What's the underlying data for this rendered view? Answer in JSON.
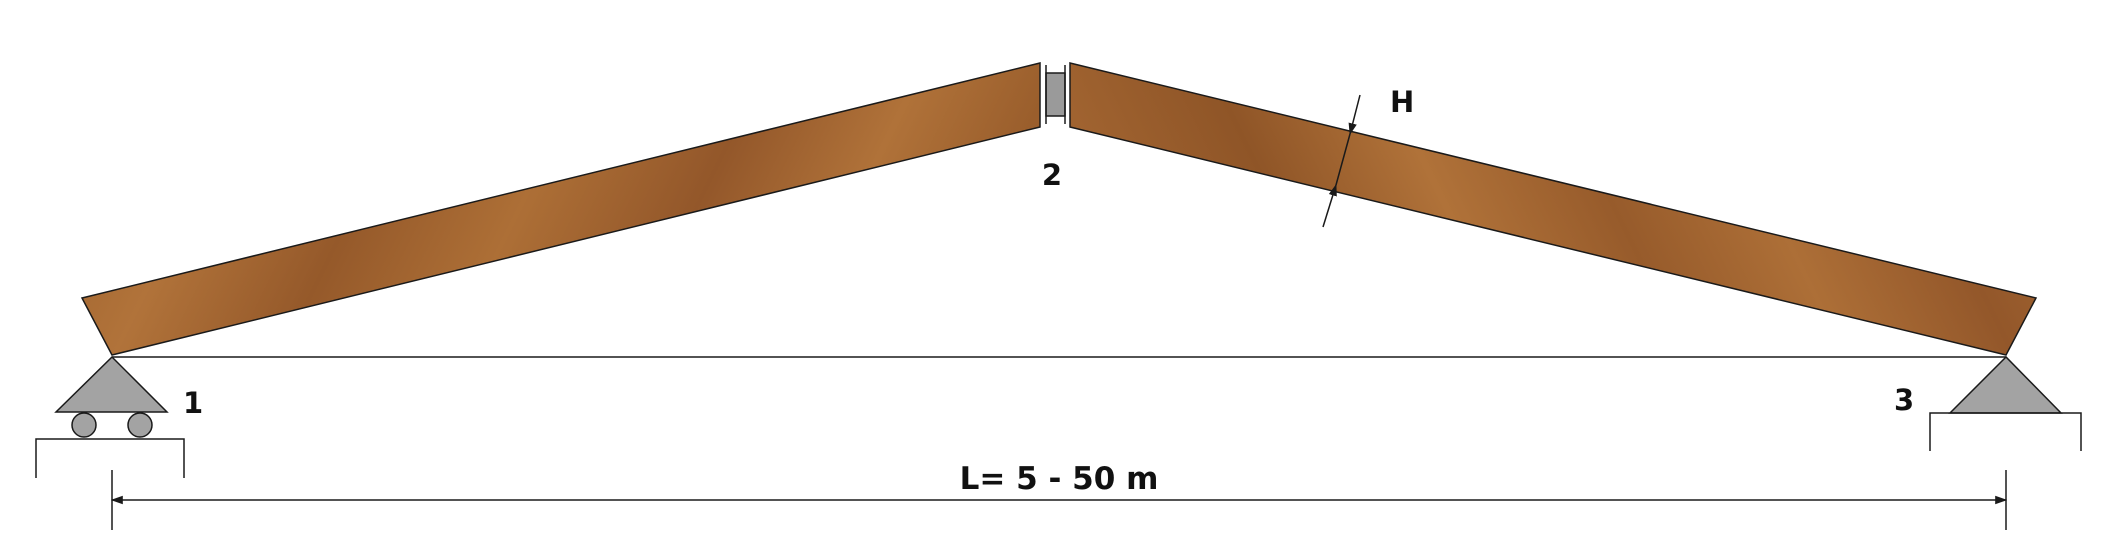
{
  "labels": {
    "node_1": "1",
    "node_2": "2",
    "node_3": "3",
    "depth": "H",
    "span": "L= 5 - 50 m"
  },
  "colors": {
    "timber_dark": "#8a5426",
    "timber_mid": "#a76a33",
    "timber_light": "#b97a3e",
    "outline": "#1a1a1a",
    "support_fill": "#a3a3a3",
    "connector_fill": "#9a9a9a",
    "background": "#ffffff"
  }
}
